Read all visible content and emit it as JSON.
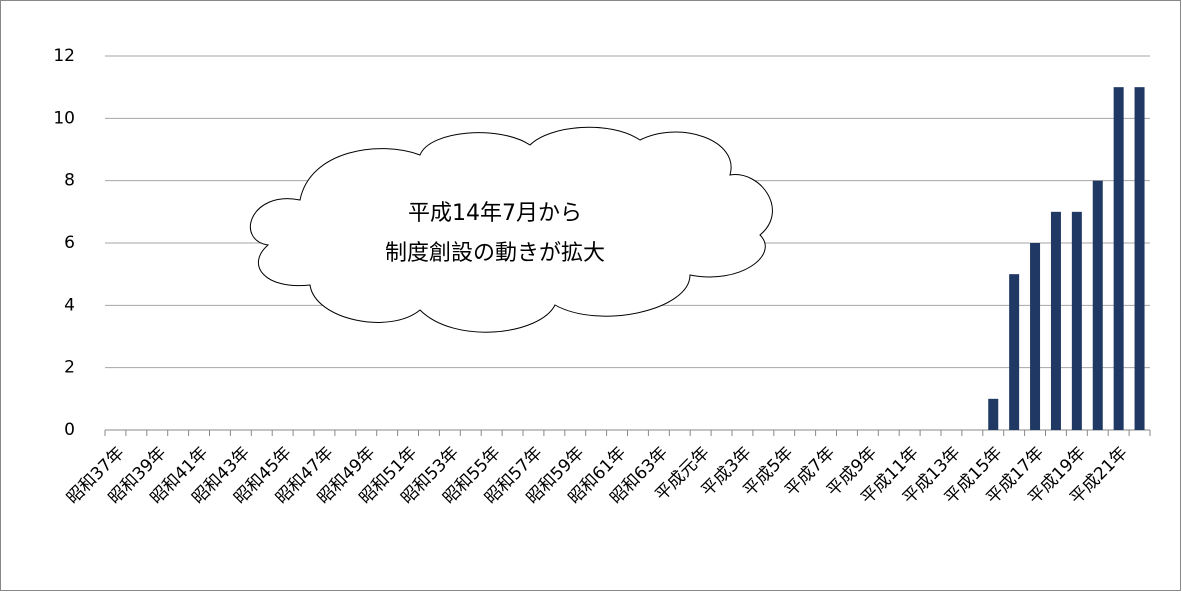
{
  "chart_data": {
    "type": "bar",
    "annotation": [
      "平成14年7月から",
      "制度創設の動きが拡大"
    ],
    "categories": [
      "昭和37年",
      null,
      "昭和39年",
      null,
      "昭和41年",
      null,
      "昭和43年",
      null,
      "昭和45年",
      null,
      "昭和47年",
      null,
      "昭和49年",
      null,
      "昭和51年",
      null,
      "昭和53年",
      null,
      "昭和55年",
      null,
      "昭和57年",
      null,
      "昭和59年",
      null,
      "昭和61年",
      null,
      "昭和63年",
      null,
      "平成元年",
      null,
      "平成3年",
      null,
      "平成5年",
      null,
      "平成7年",
      null,
      "平成9年",
      null,
      "平成11年",
      null,
      "平成13年",
      null,
      "平成15年",
      null,
      "平成17年",
      null,
      "平成19年",
      null,
      "平成21年",
      null
    ],
    "values": [
      0,
      0,
      0,
      0,
      0,
      0,
      0,
      0,
      0,
      0,
      0,
      0,
      0,
      0,
      0,
      0,
      0,
      0,
      0,
      0,
      0,
      0,
      0,
      0,
      0,
      0,
      0,
      0,
      0,
      0,
      0,
      0,
      0,
      0,
      0,
      0,
      0,
      0,
      0,
      0,
      0,
      0,
      1,
      5,
      6,
      7,
      7,
      8,
      11,
      11
    ],
    "color": "#1f3864",
    "ylim": [
      0,
      12
    ],
    "yticks": [
      0,
      2,
      4,
      6,
      8,
      10,
      12
    ],
    "grid": true
  }
}
